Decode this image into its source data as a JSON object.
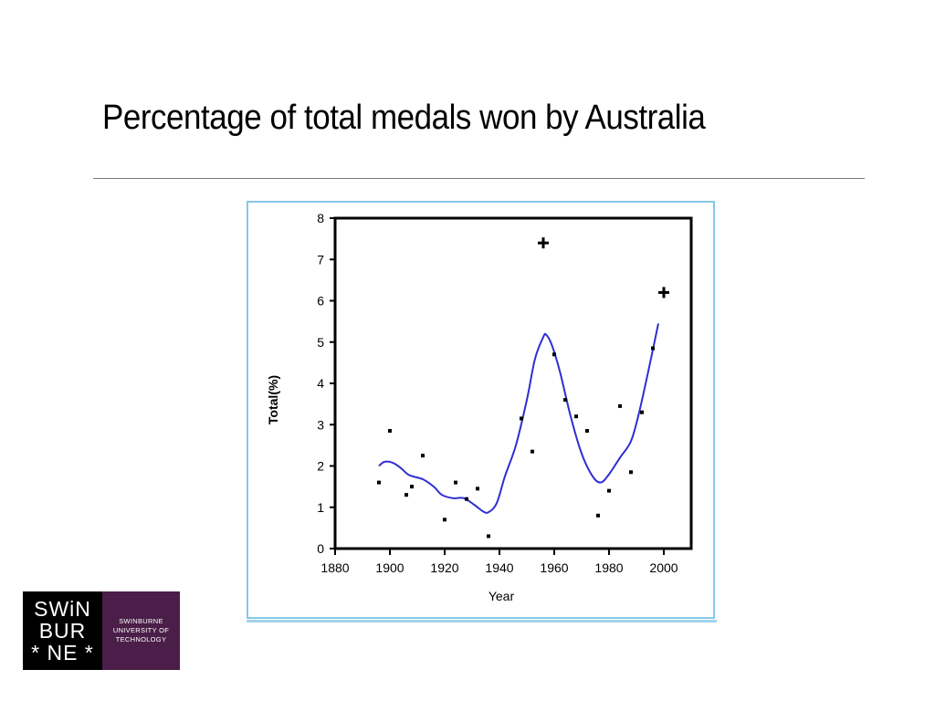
{
  "slide": {
    "title": "Percentage of total medals won by Australia"
  },
  "logo": {
    "mark_lines": [
      "SWiN",
      "BUR",
      "* NE *"
    ],
    "text_lines": [
      "SWINBURNE",
      "UNIVERSITY OF",
      "TECHNOLOGY"
    ]
  },
  "colors": {
    "curve": "#2f2fd0",
    "points": "#000000",
    "frame": "#86c8e8"
  },
  "chart_data": {
    "type": "scatter",
    "title": "",
    "xlabel": "Year",
    "ylabel": "Total(%)",
    "xlim": [
      1880,
      2010
    ],
    "ylim": [
      0,
      8
    ],
    "xticks": [
      1880,
      1900,
      1920,
      1940,
      1960,
      1980,
      2000
    ],
    "yticks": [
      0,
      1,
      2,
      3,
      4,
      5,
      6,
      7,
      8
    ],
    "grid": false,
    "points": [
      {
        "x": 1896,
        "y": 1.6
      },
      {
        "x": 1900,
        "y": 2.85
      },
      {
        "x": 1906,
        "y": 1.3
      },
      {
        "x": 1908,
        "y": 1.5
      },
      {
        "x": 1912,
        "y": 2.25
      },
      {
        "x": 1920,
        "y": 0.7
      },
      {
        "x": 1924,
        "y": 1.6
      },
      {
        "x": 1928,
        "y": 1.2
      },
      {
        "x": 1932,
        "y": 1.45
      },
      {
        "x": 1936,
        "y": 0.3
      },
      {
        "x": 1948,
        "y": 3.15
      },
      {
        "x": 1952,
        "y": 2.35
      },
      {
        "x": 1960,
        "y": 4.7
      },
      {
        "x": 1964,
        "y": 3.6
      },
      {
        "x": 1968,
        "y": 3.2
      },
      {
        "x": 1972,
        "y": 2.85
      },
      {
        "x": 1976,
        "y": 0.8
      },
      {
        "x": 1980,
        "y": 1.4
      },
      {
        "x": 1984,
        "y": 3.45
      },
      {
        "x": 1988,
        "y": 1.85
      },
      {
        "x": 1992,
        "y": 3.3
      },
      {
        "x": 1996,
        "y": 4.85
      }
    ],
    "highlight_points": [
      {
        "x": 1956,
        "y": 7.4
      },
      {
        "x": 2000,
        "y": 6.2
      }
    ],
    "smooth_curve": [
      {
        "x": 1896,
        "y": 2.0
      },
      {
        "x": 1898,
        "y": 2.1
      },
      {
        "x": 1901,
        "y": 2.08
      },
      {
        "x": 1904,
        "y": 1.95
      },
      {
        "x": 1907,
        "y": 1.78
      },
      {
        "x": 1912,
        "y": 1.68
      },
      {
        "x": 1916,
        "y": 1.5
      },
      {
        "x": 1919,
        "y": 1.3
      },
      {
        "x": 1923,
        "y": 1.22
      },
      {
        "x": 1927,
        "y": 1.22
      },
      {
        "x": 1931,
        "y": 1.05
      },
      {
        "x": 1934,
        "y": 0.9
      },
      {
        "x": 1936,
        "y": 0.88
      },
      {
        "x": 1939,
        "y": 1.1
      },
      {
        "x": 1942,
        "y": 1.75
      },
      {
        "x": 1946,
        "y": 2.5
      },
      {
        "x": 1950,
        "y": 3.6
      },
      {
        "x": 1953,
        "y": 4.6
      },
      {
        "x": 1956,
        "y": 5.12
      },
      {
        "x": 1957,
        "y": 5.18
      },
      {
        "x": 1959,
        "y": 4.95
      },
      {
        "x": 1962,
        "y": 4.3
      },
      {
        "x": 1966,
        "y": 3.2
      },
      {
        "x": 1970,
        "y": 2.3
      },
      {
        "x": 1974,
        "y": 1.75
      },
      {
        "x": 1977,
        "y": 1.6
      },
      {
        "x": 1980,
        "y": 1.8
      },
      {
        "x": 1984,
        "y": 2.2
      },
      {
        "x": 1988,
        "y": 2.6
      },
      {
        "x": 1991,
        "y": 3.3
      },
      {
        "x": 1995,
        "y": 4.5
      },
      {
        "x": 1998,
        "y": 5.45
      }
    ]
  }
}
